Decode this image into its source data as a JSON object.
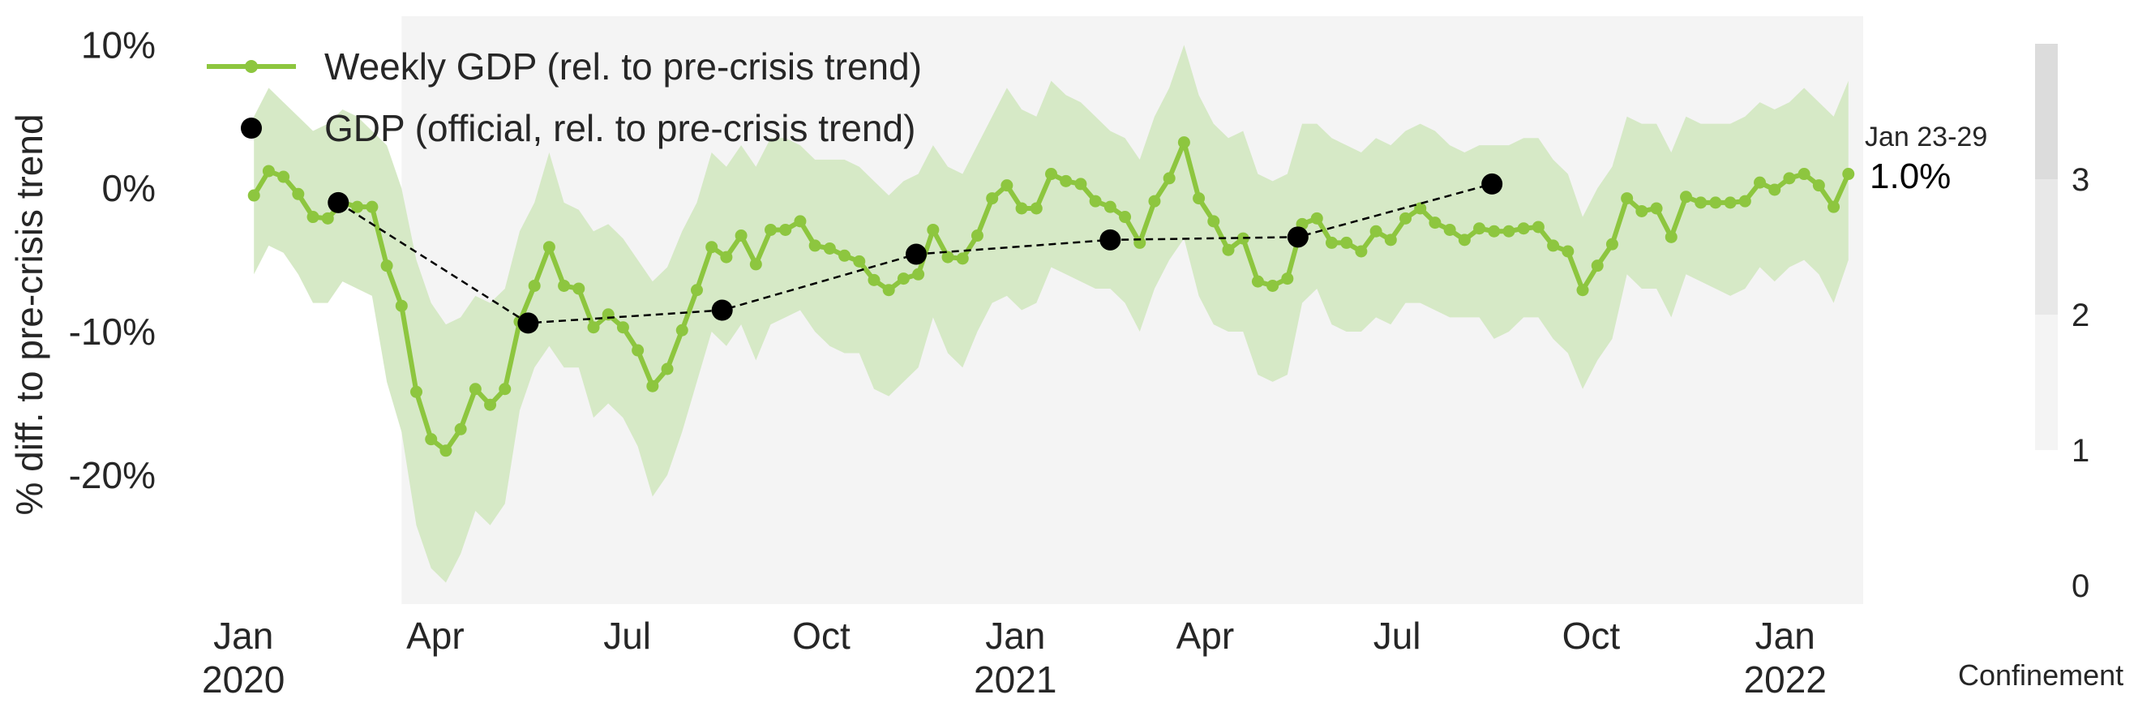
{
  "chart_data": {
    "type": "line",
    "ylabel": "% diff. to pre-crisis trend",
    "ylim": [
      -29,
      12
    ],
    "yticks": [
      {
        "value": 10,
        "label": "10%"
      },
      {
        "value": 0,
        "label": "0%"
      },
      {
        "value": -10,
        "label": "-10%"
      },
      {
        "value": -20,
        "label": "-20%"
      }
    ],
    "x_start": "2019-12-30",
    "x_end": "2022-02-07",
    "xticks": [
      {
        "date": "2020-01-01",
        "label": "Jan",
        "year": "2020"
      },
      {
        "date": "2020-04-01",
        "label": "Apr",
        "year": ""
      },
      {
        "date": "2020-07-01",
        "label": "Jul",
        "year": ""
      },
      {
        "date": "2020-10-01",
        "label": "Oct",
        "year": ""
      },
      {
        "date": "2021-01-01",
        "label": "Jan",
        "year": "2021"
      },
      {
        "date": "2021-04-01",
        "label": "Apr",
        "year": ""
      },
      {
        "date": "2021-07-01",
        "label": "Jul",
        "year": ""
      },
      {
        "date": "2021-10-01",
        "label": "Oct",
        "year": ""
      },
      {
        "date": "2022-01-01",
        "label": "Jan",
        "year": "2022"
      }
    ],
    "legend_position": "top-left",
    "grid": false,
    "series": [
      {
        "name": "Weekly GDP (rel. to pre-crisis trend)",
        "color": "#8dc63f",
        "band_color": "#d6e9c6",
        "start_date": "2020-01-06",
        "step_days": 7,
        "values": [
          -0.5,
          1.2,
          0.8,
          -0.4,
          -2.0,
          -2.1,
          -1.0,
          -1.3,
          -1.3,
          -5.4,
          -8.2,
          -14.2,
          -17.5,
          -18.3,
          -16.8,
          -14.0,
          -15.1,
          -14.0,
          -9.3,
          -6.8,
          -4.1,
          -6.8,
          -7.0,
          -9.7,
          -8.8,
          -9.7,
          -11.3,
          -13.8,
          -12.6,
          -9.9,
          -7.1,
          -4.1,
          -4.8,
          -3.3,
          -5.3,
          -2.9,
          -2.9,
          -2.3,
          -4.0,
          -4.2,
          -4.7,
          -5.1,
          -6.4,
          -7.1,
          -6.3,
          -6.0,
          -2.9,
          -4.8,
          -4.9,
          -3.3,
          -0.7,
          0.2,
          -1.4,
          -1.4,
          1.0,
          0.5,
          0.3,
          -0.9,
          -1.3,
          -2.0,
          -3.8,
          -0.9,
          0.7,
          3.2,
          -0.7,
          -2.3,
          -4.3,
          -3.5,
          -6.5,
          -6.8,
          -6.3,
          -2.5,
          -2.1,
          -3.8,
          -3.8,
          -4.4,
          -3.0,
          -3.6,
          -2.1,
          -1.4,
          -2.4,
          -2.9,
          -3.6,
          -2.8,
          -3.0,
          -3.0,
          -2.8,
          -2.7,
          -4.0,
          -4.4,
          -7.1,
          -5.4,
          -3.9,
          -0.7,
          -1.6,
          -1.4,
          -3.4,
          -0.6,
          -1.0,
          -1.0,
          -1.0,
          -0.9,
          0.4,
          -0.1,
          0.7,
          1.0,
          0.2,
          -1.3,
          1.0
        ],
        "upper": [
          5.0,
          7.0,
          6.0,
          5.0,
          4.0,
          4.5,
          5.5,
          5.0,
          4.0,
          3.0,
          0.0,
          -5.0,
          -8.0,
          -9.5,
          -9.0,
          -7.5,
          -8.0,
          -7.0,
          -3.0,
          -1.0,
          2.5,
          -1.0,
          -1.5,
          -3.0,
          -2.5,
          -3.5,
          -5.0,
          -6.5,
          -5.5,
          -3.0,
          -1.0,
          2.5,
          1.5,
          3.0,
          1.5,
          3.5,
          3.5,
          3.0,
          2.0,
          2.0,
          2.0,
          1.5,
          0.5,
          -0.5,
          0.5,
          1.0,
          3.0,
          1.5,
          1.0,
          3.0,
          5.0,
          7.0,
          5.5,
          5.0,
          7.5,
          6.5,
          6.0,
          5.0,
          4.0,
          3.5,
          2.0,
          5.0,
          7.0,
          10.0,
          6.5,
          4.5,
          3.5,
          4.0,
          1.0,
          0.5,
          1.0,
          4.5,
          4.5,
          3.5,
          3.0,
          2.5,
          3.5,
          3.0,
          4.0,
          4.5,
          4.0,
          3.0,
          2.5,
          3.0,
          3.0,
          3.0,
          3.5,
          3.5,
          2.0,
          1.0,
          -2.0,
          0.0,
          1.5,
          5.0,
          4.5,
          4.5,
          2.5,
          5.0,
          4.5,
          4.5,
          4.5,
          5.0,
          6.0,
          5.5,
          6.0,
          7.0,
          6.0,
          5.0,
          7.5
        ],
        "lower": [
          -6.0,
          -4.0,
          -4.5,
          -6.0,
          -8.0,
          -8.0,
          -6.5,
          -7.0,
          -7.5,
          -13.5,
          -17.0,
          -23.5,
          -26.5,
          -27.5,
          -25.5,
          -22.5,
          -23.5,
          -22.0,
          -15.5,
          -12.5,
          -11.0,
          -12.5,
          -12.5,
          -16.0,
          -15.0,
          -16.0,
          -18.0,
          -21.5,
          -20.0,
          -17.0,
          -13.5,
          -10.0,
          -11.0,
          -9.5,
          -12.0,
          -9.5,
          -9.0,
          -8.5,
          -10.0,
          -11.0,
          -11.5,
          -11.5,
          -14.0,
          -14.5,
          -13.5,
          -12.5,
          -9.0,
          -11.5,
          -12.5,
          -10.0,
          -8.0,
          -7.5,
          -8.5,
          -8.0,
          -5.5,
          -6.0,
          -6.5,
          -7.0,
          -7.0,
          -8.0,
          -10.0,
          -7.0,
          -5.0,
          -3.5,
          -7.5,
          -9.5,
          -10.0,
          -10.0,
          -13.0,
          -13.5,
          -13.0,
          -8.0,
          -7.0,
          -9.5,
          -10.0,
          -10.0,
          -9.0,
          -9.5,
          -8.0,
          -8.0,
          -8.5,
          -9.0,
          -9.0,
          -9.0,
          -10.5,
          -10.0,
          -9.0,
          -9.0,
          -10.5,
          -11.5,
          -14.0,
          -12.0,
          -10.5,
          -6.0,
          -7.0,
          -7.0,
          -9.0,
          -6.0,
          -6.5,
          -7.0,
          -7.5,
          -7.0,
          -5.5,
          -6.5,
          -5.5,
          -5.0,
          -6.0,
          -8.0,
          -5.0
        ]
      },
      {
        "name": "GDP (official, rel. to pre-crisis trend)",
        "color": "#000000",
        "points": [
          {
            "date": "2020-02-15",
            "value": -1.0
          },
          {
            "date": "2020-05-15",
            "value": -9.4
          },
          {
            "date": "2020-08-15",
            "value": -8.5
          },
          {
            "date": "2020-11-15",
            "value": -4.6
          },
          {
            "date": "2021-02-15",
            "value": -3.6
          },
          {
            "date": "2021-05-15",
            "value": -3.4
          },
          {
            "date": "2021-08-15",
            "value": 0.3
          }
        ]
      }
    ],
    "confinement_shading": {
      "start": "2020-03-16",
      "end": "2022-02-07",
      "color": "#f4f4f4"
    },
    "last_point_annotation": {
      "date_label": "Jan 23-29",
      "value_label": "1.0%"
    },
    "colorbar": {
      "label": "Confinement",
      "ticks": [
        "0",
        "1",
        "2",
        "3"
      ],
      "levels": [
        {
          "from": 1,
          "to": 2,
          "color": "#f4f4f4"
        },
        {
          "from": 2,
          "to": 3,
          "color": "#e8e8e8"
        },
        {
          "from": 3,
          "to": 4,
          "color": "#dcdcdc"
        }
      ]
    }
  }
}
